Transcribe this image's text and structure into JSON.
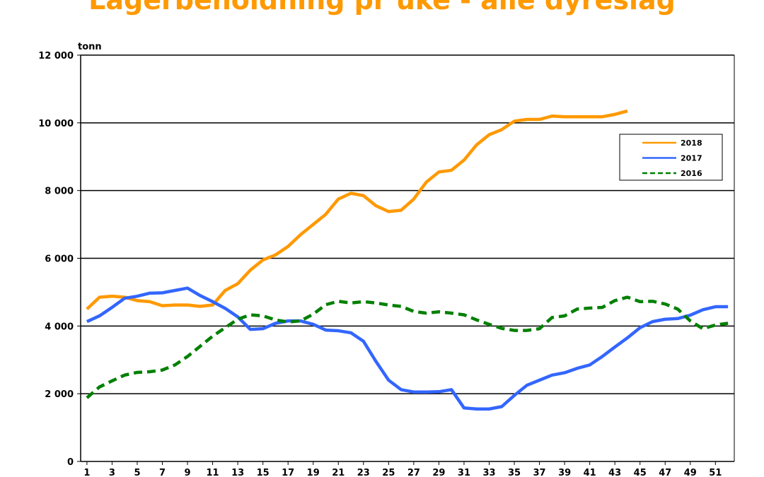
{
  "chart_data": {
    "type": "line",
    "title": "Lagerbeholdning pr uke - alle dyreslag",
    "ylabel": "tonn",
    "xlabel": "",
    "ylim": [
      0,
      12000
    ],
    "yticks": [
      0,
      2000,
      4000,
      6000,
      8000,
      10000,
      12000
    ],
    "ytick_labels": [
      "0",
      "2 000",
      "4 000",
      "6 000",
      "8 000",
      "10 000",
      "12 000"
    ],
    "xlim": [
      1,
      52
    ],
    "xtick_labels": [
      "1",
      "3",
      "5",
      "7",
      "9",
      "11",
      "13",
      "15",
      "17",
      "19",
      "21",
      "23",
      "25",
      "27",
      "29",
      "31",
      "33",
      "35",
      "37",
      "39",
      "41",
      "43",
      "45",
      "47",
      "49",
      "51"
    ],
    "grid": "horizontal",
    "legend_position": "top-right",
    "series": [
      {
        "name": "2018",
        "color": "#FF9900",
        "style": "solid",
        "values": [
          4500,
          4850,
          4880,
          4850,
          4750,
          4720,
          4600,
          4620,
          4620,
          4580,
          4620,
          5050,
          5250,
          5650,
          5950,
          6100,
          6350,
          6700,
          7000,
          7300,
          7750,
          7920,
          7850,
          7550,
          7380,
          7420,
          7750,
          8250,
          8550,
          8600,
          8900,
          9350,
          9650,
          9800,
          10050,
          10100,
          10100,
          10200,
          10180,
          10180,
          10180,
          10180,
          10250,
          10350
        ]
      },
      {
        "name": "2017",
        "color": "#3366FF",
        "style": "solid",
        "values": [
          4130,
          4300,
          4550,
          4820,
          4880,
          4970,
          4980,
          5050,
          5120,
          4900,
          4720,
          4520,
          4270,
          3900,
          3920,
          4080,
          4150,
          4150,
          4050,
          3880,
          3860,
          3800,
          3550,
          2950,
          2400,
          2120,
          2050,
          2050,
          2060,
          2120,
          1580,
          1550,
          1550,
          1620,
          1950,
          2250,
          2400,
          2550,
          2620,
          2750,
          2850,
          3100,
          3380,
          3650,
          3950,
          4130,
          4200,
          4220,
          4320,
          4480,
          4570,
          4570
        ]
      },
      {
        "name": "2016",
        "color": "#008000",
        "style": "dashed",
        "values": [
          1880,
          2200,
          2380,
          2550,
          2630,
          2650,
          2700,
          2850,
          3100,
          3400,
          3700,
          3950,
          4200,
          4330,
          4300,
          4180,
          4120,
          4150,
          4350,
          4630,
          4730,
          4680,
          4720,
          4680,
          4620,
          4580,
          4430,
          4380,
          4420,
          4380,
          4330,
          4180,
          4050,
          3930,
          3870,
          3870,
          3920,
          4250,
          4300,
          4500,
          4530,
          4550,
          4750,
          4850,
          4720,
          4730,
          4650,
          4500,
          4150,
          3920,
          4030,
          4080
        ]
      }
    ]
  }
}
